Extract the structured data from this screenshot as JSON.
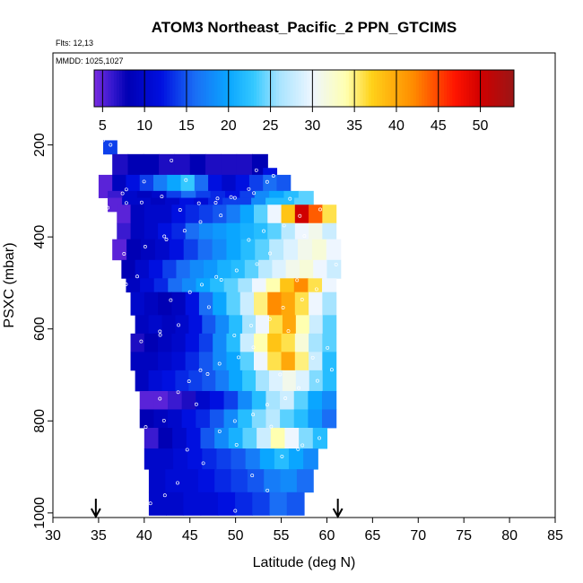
{
  "chart_data": {
    "type": "heatmap",
    "title": "ATOM3 Northeast_Pacific_2 PPN_GTCIMS",
    "flights_label": "Flts: 12,13",
    "dates_label": "MMDD: 1025,1027",
    "xlabel": "Latitude (deg N)",
    "ylabel": "PSXC (mbar)",
    "xlim": [
      30,
      85
    ],
    "ylim": [
      1010,
      0
    ],
    "x_ticks": [
      30,
      35,
      40,
      45,
      50,
      55,
      60,
      65,
      70,
      75,
      80,
      85
    ],
    "y_ticks": [
      200,
      400,
      600,
      800,
      1000
    ],
    "colorbar": {
      "range": [
        4,
        54
      ],
      "ticks": [
        5,
        10,
        15,
        20,
        25,
        30,
        35,
        40,
        45,
        50
      ],
      "stops": [
        {
          "value": 4,
          "color": "#7a2be0"
        },
        {
          "value": 6,
          "color": "#3a1ad0"
        },
        {
          "value": 8,
          "color": "#0000b4"
        },
        {
          "value": 12,
          "color": "#0010e0"
        },
        {
          "value": 16,
          "color": "#1a6ef5"
        },
        {
          "value": 20,
          "color": "#0aa6ff"
        },
        {
          "value": 23,
          "color": "#34c8ff"
        },
        {
          "value": 26,
          "color": "#a7e4ff"
        },
        {
          "value": 30,
          "color": "#eef6ff"
        },
        {
          "value": 34,
          "color": "#ffffb0"
        },
        {
          "value": 37,
          "color": "#ffd21a"
        },
        {
          "value": 42,
          "color": "#ff8c00"
        },
        {
          "value": 47,
          "color": "#ff1400"
        },
        {
          "value": 50,
          "color": "#d00000"
        },
        {
          "value": 54,
          "color": "#9a1616"
        }
      ]
    },
    "rows": [
      {
        "p": [
          190,
          220
        ],
        "lat": [
          35.5,
          37
        ],
        "vals": [
          14
        ]
      },
      {
        "p": [
          220,
          285
        ],
        "lat": [
          36.5,
          53.5
        ],
        "vals": [
          7,
          8,
          8,
          7,
          7,
          8,
          7,
          7,
          7,
          8
        ]
      },
      {
        "p": [
          250,
          290
        ],
        "lat": [
          53,
          54.5
        ],
        "vals": [
          12
        ]
      },
      {
        "p": [
          265,
          315
        ],
        "lat": [
          35,
          56
        ],
        "vals": [
          5,
          9,
          12,
          14,
          17,
          20,
          23,
          16,
          12,
          10,
          12,
          14,
          16,
          15
        ]
      },
      {
        "p": [
          300,
          330
        ],
        "lat": [
          36,
          58.5
        ],
        "vals": [
          6,
          10,
          9,
          10,
          14,
          16,
          14,
          13,
          12,
          14,
          18,
          20,
          22,
          24
        ]
      },
      {
        "p": [
          315,
          345
        ],
        "lat": [
          36,
          58
        ],
        "vals": [
          5,
          10,
          10,
          9,
          10,
          12,
          11,
          13,
          14,
          14,
          18,
          22,
          22,
          24
        ]
      },
      {
        "p": [
          330,
          370
        ],
        "lat": [
          37,
          61
        ],
        "vals": [
          5,
          9,
          10,
          10,
          12,
          13,
          14,
          15,
          17,
          20,
          24,
          30,
          38,
          50,
          44,
          36
        ]
      },
      {
        "p": [
          370,
          405
        ],
        "lat": [
          37,
          61
        ],
        "vals": [
          6,
          9,
          10,
          12,
          13,
          16,
          18,
          19,
          20,
          21,
          22,
          24,
          27,
          30,
          31,
          28
        ]
      },
      {
        "p": [
          405,
          450
        ],
        "lat": [
          36.5,
          61.5
        ],
        "vals": [
          5,
          8,
          9,
          10,
          12,
          14,
          16,
          18,
          20,
          22,
          24,
          27,
          29,
          31,
          32,
          30
        ]
      },
      {
        "p": [
          450,
          490
        ],
        "lat": [
          37.5,
          61.5
        ],
        "vals": [
          8,
          10,
          12,
          14,
          16,
          18,
          19,
          21,
          22,
          24,
          27,
          29,
          31,
          32,
          30,
          28
        ]
      },
      {
        "p": [
          490,
          520
        ],
        "lat": [
          38,
          61
        ],
        "vals": [
          9,
          11,
          13,
          16,
          18,
          20,
          22,
          24,
          26,
          30,
          34,
          38,
          42,
          36,
          30
        ]
      },
      {
        "p": [
          520,
          570
        ],
        "lat": [
          38.5,
          61
        ],
        "vals": [
          10,
          9,
          8,
          9,
          12,
          16,
          20,
          24,
          28,
          35,
          42,
          40,
          36,
          30,
          26
        ]
      },
      {
        "p": [
          570,
          610
        ],
        "lat": [
          39,
          61
        ],
        "vals": [
          9,
          10,
          9,
          10,
          12,
          15,
          18,
          22,
          26,
          30,
          36,
          40,
          34,
          28,
          24
        ]
      },
      {
        "p": [
          610,
          650
        ],
        "lat": [
          38.5,
          61
        ],
        "vals": [
          7,
          8,
          9,
          10,
          12,
          14,
          18,
          22,
          28,
          34,
          38,
          36,
          32,
          26,
          24
        ]
      },
      {
        "p": [
          650,
          690
        ],
        "lat": [
          38.5,
          61
        ],
        "vals": [
          9,
          9,
          10,
          11,
          13,
          15,
          18,
          20,
          24,
          30,
          36,
          40,
          35,
          28,
          22
        ]
      },
      {
        "p": [
          690,
          735
        ],
        "lat": [
          39,
          61
        ],
        "vals": [
          9,
          11,
          12,
          13,
          14,
          15,
          17,
          20,
          23,
          26,
          29,
          31,
          29,
          25,
          22
        ]
      },
      {
        "p": [
          735,
          775
        ],
        "lat": [
          39.5,
          61
        ],
        "vals": [
          5,
          5,
          6,
          7,
          10,
          12,
          14,
          18,
          22,
          26,
          28,
          24,
          20,
          18
        ]
      },
      {
        "p": [
          775,
          815
        ],
        "lat": [
          39.5,
          61
        ],
        "vals": [
          8,
          9,
          10,
          12,
          13,
          15,
          18,
          22,
          25,
          27,
          24,
          22,
          19,
          16
        ]
      },
      {
        "p": [
          815,
          860
        ],
        "lat": [
          40,
          60
        ],
        "vals": [
          6,
          8,
          10,
          12,
          15,
          18,
          21,
          24,
          28,
          34,
          30,
          25,
          22
        ]
      },
      {
        "p": [
          860,
          905
        ],
        "lat": [
          40,
          59
        ],
        "vals": [
          10,
          10,
          11,
          12,
          13,
          14,
          15,
          17,
          20,
          22,
          20,
          18
        ]
      },
      {
        "p": [
          905,
          955
        ],
        "lat": [
          40.5,
          58.5
        ],
        "vals": [
          10,
          11,
          11,
          12,
          13,
          14,
          15,
          17,
          18,
          16
        ]
      },
      {
        "p": [
          955,
          1005
        ],
        "lat": [
          40.5,
          57.5
        ],
        "vals": [
          10,
          10,
          11,
          11,
          12,
          13,
          14,
          16,
          15
        ]
      }
    ],
    "markers": [
      {
        "lat": 34.7,
        "label": ""
      },
      {
        "lat": 61.2,
        "label": ""
      }
    ]
  }
}
